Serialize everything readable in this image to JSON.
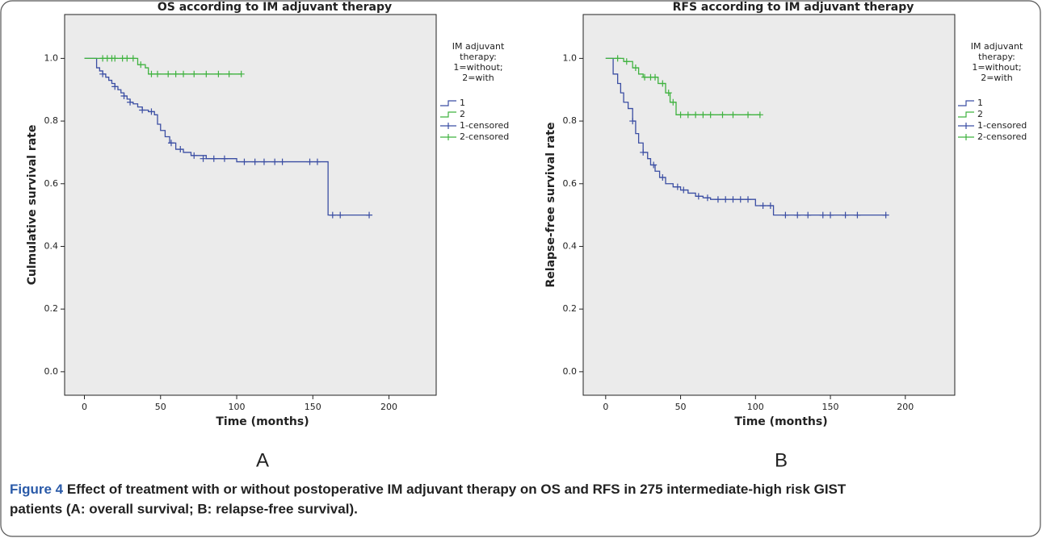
{
  "chart_data": [
    {
      "type": "step",
      "title": "OS according to IM adjuvant therapy",
      "xlabel": "Time (months)",
      "ylabel": "Culmulative survival rate",
      "panel_label": "A",
      "legend_title": [
        "IM adjuvant",
        "therapy:",
        "1=without;",
        "2=with"
      ],
      "xlim": [
        -13,
        231
      ],
      "ylim": [
        -0.075,
        1.14
      ],
      "xticks": [
        0,
        50,
        100,
        150,
        200
      ],
      "yticks": [
        {
          "value": 0,
          "label": "0.0"
        },
        0.2,
        0.4,
        0.6,
        0.8,
        {
          "value": 1,
          "label": "1.0"
        }
      ],
      "series": [
        {
          "name": "1",
          "kind": "step",
          "color": "#3b4ea3",
          "x": [
            0,
            8,
            10,
            12,
            14,
            16,
            18,
            20,
            22,
            24,
            26,
            28,
            30,
            32,
            35,
            38,
            42,
            46,
            48,
            50,
            53,
            56,
            60,
            65,
            70,
            80,
            100,
            160,
            187
          ],
          "values": [
            1,
            0.97,
            0.96,
            0.95,
            0.94,
            0.93,
            0.92,
            0.91,
            0.9,
            0.89,
            0.88,
            0.87,
            0.86,
            0.855,
            0.845,
            0.835,
            0.83,
            0.82,
            0.79,
            0.77,
            0.75,
            0.73,
            0.71,
            0.7,
            0.69,
            0.68,
            0.67,
            0.5,
            0.5
          ]
        },
        {
          "name": "2",
          "kind": "step",
          "color": "#3fb23f",
          "x": [
            0,
            35,
            40,
            42,
            103
          ],
          "values": [
            1,
            0.98,
            0.97,
            0.95,
            0.95
          ]
        },
        {
          "name": "1-censored",
          "kind": "censored",
          "color": "#3b4ea3",
          "x": [
            12,
            20,
            26,
            30,
            38,
            44,
            57,
            63,
            72,
            78,
            85,
            92,
            105,
            112,
            118,
            125,
            130,
            148,
            153,
            163,
            168,
            187
          ],
          "values": [
            0.95,
            0.91,
            0.88,
            0.86,
            0.835,
            0.83,
            0.73,
            0.71,
            0.69,
            0.68,
            0.68,
            0.68,
            0.67,
            0.67,
            0.67,
            0.67,
            0.67,
            0.67,
            0.67,
            0.5,
            0.5,
            0.5
          ]
        },
        {
          "name": "2-censored",
          "kind": "censored",
          "color": "#3fb23f",
          "x": [
            12,
            15,
            18,
            20,
            25,
            28,
            32,
            37,
            44,
            48,
            55,
            60,
            65,
            72,
            80,
            88,
            95,
            103
          ],
          "values": [
            1,
            1,
            1,
            1,
            1,
            1,
            1,
            0.98,
            0.95,
            0.95,
            0.95,
            0.95,
            0.95,
            0.95,
            0.95,
            0.95,
            0.95,
            0.95
          ]
        }
      ]
    },
    {
      "type": "step",
      "title": "RFS according to IM adjuvant therapy",
      "xlabel": "Time (months)",
      "ylabel": "Relapse-free survival rate",
      "panel_label": "B",
      "legend_title": [
        "IM adjuvant",
        "therapy:",
        "1=without;",
        "2=with"
      ],
      "xlim": [
        -15,
        233
      ],
      "ylim": [
        -0.075,
        1.14
      ],
      "xticks": [
        0,
        50,
        100,
        150,
        200
      ],
      "yticks": [
        {
          "value": 0,
          "label": "0.0"
        },
        0.2,
        0.4,
        0.6,
        0.8,
        {
          "value": 1,
          "label": "1.0"
        }
      ],
      "series": [
        {
          "name": "1",
          "kind": "step",
          "color": "#3b4ea3",
          "x": [
            0,
            5,
            8,
            10,
            12,
            15,
            18,
            20,
            22,
            25,
            28,
            30,
            33,
            36,
            40,
            45,
            50,
            55,
            60,
            65,
            70,
            100,
            112,
            187
          ],
          "values": [
            1,
            0.95,
            0.92,
            0.89,
            0.86,
            0.84,
            0.8,
            0.76,
            0.73,
            0.7,
            0.68,
            0.66,
            0.64,
            0.62,
            0.6,
            0.59,
            0.58,
            0.57,
            0.56,
            0.555,
            0.55,
            0.53,
            0.5,
            0.5
          ]
        },
        {
          "name": "2",
          "kind": "step",
          "color": "#3fb23f",
          "x": [
            0,
            12,
            18,
            22,
            25,
            35,
            40,
            43,
            47,
            103
          ],
          "values": [
            1,
            0.99,
            0.97,
            0.95,
            0.94,
            0.92,
            0.89,
            0.86,
            0.82,
            0.82
          ]
        },
        {
          "name": "1-censored",
          "kind": "censored",
          "color": "#3b4ea3",
          "x": [
            18,
            25,
            32,
            38,
            48,
            52,
            62,
            68,
            75,
            80,
            85,
            90,
            95,
            105,
            110,
            120,
            128,
            135,
            145,
            150,
            160,
            168,
            187
          ],
          "values": [
            0.8,
            0.7,
            0.66,
            0.62,
            0.59,
            0.58,
            0.56,
            0.555,
            0.55,
            0.55,
            0.55,
            0.55,
            0.55,
            0.53,
            0.53,
            0.5,
            0.5,
            0.5,
            0.5,
            0.5,
            0.5,
            0.5,
            0.5
          ]
        },
        {
          "name": "2-censored",
          "kind": "censored",
          "color": "#3fb23f",
          "x": [
            8,
            14,
            20,
            26,
            30,
            33,
            38,
            42,
            45,
            50,
            55,
            60,
            65,
            70,
            78,
            85,
            95,
            103
          ],
          "values": [
            1,
            0.99,
            0.97,
            0.94,
            0.94,
            0.94,
            0.92,
            0.89,
            0.86,
            0.82,
            0.82,
            0.82,
            0.82,
            0.82,
            0.82,
            0.82,
            0.82,
            0.82
          ]
        }
      ]
    }
  ],
  "caption": {
    "label": "Figure 4",
    "text": "Effect of treatment with or without postoperative IM adjuvant therapy on OS and RFS in 275 intermediate-high risk GIST",
    "text2": "patients (A: overall survival; B: relapse-free survival)."
  }
}
